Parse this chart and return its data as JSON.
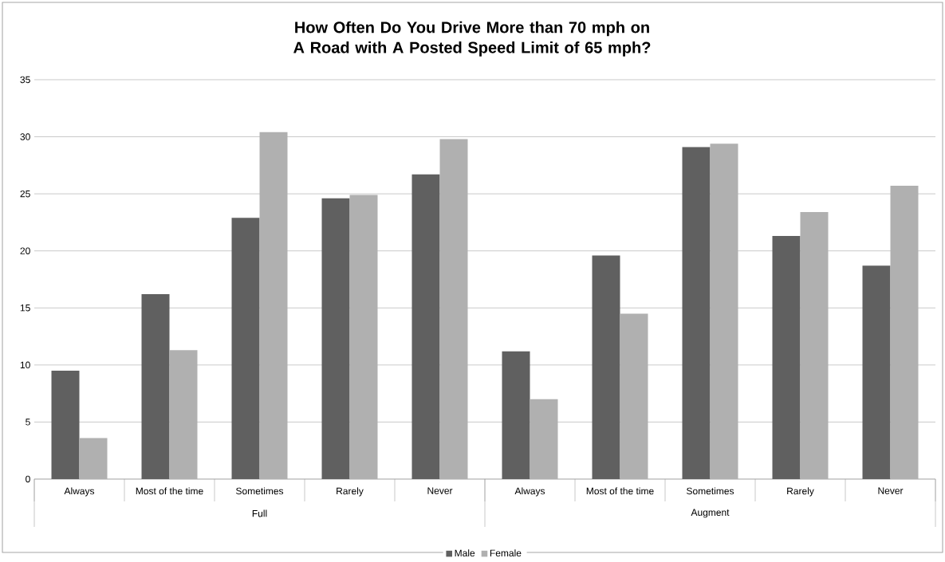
{
  "chart_data": {
    "type": "bar",
    "title": "How Often Do You Drive More than 70 mph on A Road with A Posted Speed Limit of 65 mph?",
    "categories": [
      "Always",
      "Most of the time",
      "Sometimes",
      "Rarely",
      "Never",
      "Always",
      "Most of the time",
      "Sometimes",
      "Rarely",
      "Never"
    ],
    "series": [
      {
        "name": "Male",
        "color": "#606060",
        "values": [
          9.5,
          16.2,
          22.9,
          24.6,
          26.7,
          11.2,
          19.6,
          29.1,
          21.3,
          18.7
        ]
      },
      {
        "name": "Female",
        "color": "#b0b0b0",
        "values": [
          3.6,
          11.3,
          30.4,
          24.9,
          29.8,
          7.0,
          14.5,
          29.4,
          23.4,
          25.7
        ]
      }
    ],
    "annotations": [
      "Full",
      "Augment"
    ],
    "ylim": [
      0,
      35
    ],
    "yticks": [
      0,
      5,
      10,
      15,
      20,
      25,
      30,
      35
    ],
    "grid": "y",
    "legend": "bottom"
  }
}
